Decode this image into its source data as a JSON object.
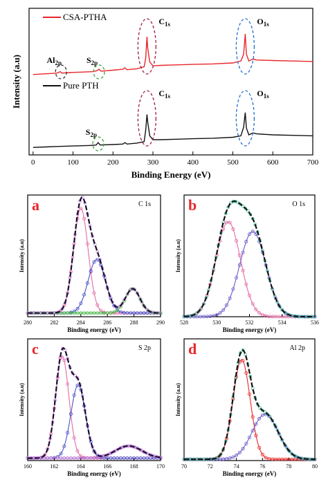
{
  "chart_data": [
    {
      "id": "survey",
      "type": "line",
      "xlabel": "Binding Energy (eV)",
      "ylabel": "Intensity (a.u)",
      "xlim": [
        -10,
        700
      ],
      "xticks": [
        0,
        100,
        200,
        300,
        400,
        500,
        600,
        700
      ],
      "yticks": false,
      "legend_position": "top-left",
      "series": [
        {
          "name": "CSA-PTHA",
          "color": "#e8262a",
          "offset": 0.55,
          "points": [
            [
              0,
              0.03
            ],
            [
              20,
              0.035
            ],
            [
              40,
              0.04
            ],
            [
              60,
              0.045
            ],
            [
              68,
              0.06
            ],
            [
              72,
              0.045
            ],
            [
              90,
              0.05
            ],
            [
              100,
              0.052
            ],
            [
              120,
              0.055
            ],
            [
              150,
              0.06
            ],
            [
              160,
              0.07
            ],
            [
              165,
              0.085
            ],
            [
              170,
              0.065
            ],
            [
              200,
              0.075
            ],
            [
              225,
              0.085
            ],
            [
              230,
              0.1
            ],
            [
              235,
              0.08
            ],
            [
              260,
              0.09
            ],
            [
              278,
              0.11
            ],
            [
              282,
              0.2
            ],
            [
              285,
              0.42
            ],
            [
              287,
              0.3
            ],
            [
              292,
              0.16
            ],
            [
              300,
              0.12
            ],
            [
              320,
              0.125
            ],
            [
              360,
              0.13
            ],
            [
              400,
              0.135
            ],
            [
              450,
              0.14
            ],
            [
              500,
              0.15
            ],
            [
              520,
              0.17
            ],
            [
              527,
              0.24
            ],
            [
              531,
              0.45
            ],
            [
              534,
              0.24
            ],
            [
              540,
              0.17
            ],
            [
              550,
              0.19
            ],
            [
              560,
              0.18
            ],
            [
              600,
              0.175
            ],
            [
              650,
              0.17
            ],
            [
              700,
              0.165
            ]
          ]
        },
        {
          "name": "Pure PTH",
          "color": "#111111",
          "offset": 0.0,
          "points": [
            [
              0,
              0.02
            ],
            [
              30,
              0.025
            ],
            [
              60,
              0.03
            ],
            [
              100,
              0.035
            ],
            [
              140,
              0.04
            ],
            [
              158,
              0.045
            ],
            [
              163,
              0.07
            ],
            [
              168,
              0.045
            ],
            [
              200,
              0.05
            ],
            [
              225,
              0.055
            ],
            [
              230,
              0.07
            ],
            [
              235,
              0.055
            ],
            [
              260,
              0.065
            ],
            [
              278,
              0.08
            ],
            [
              282,
              0.2
            ],
            [
              285,
              0.36
            ],
            [
              287,
              0.28
            ],
            [
              292,
              0.14
            ],
            [
              300,
              0.1
            ],
            [
              320,
              0.1
            ],
            [
              360,
              0.105
            ],
            [
              400,
              0.11
            ],
            [
              450,
              0.115
            ],
            [
              500,
              0.125
            ],
            [
              520,
              0.14
            ],
            [
              527,
              0.23
            ],
            [
              531,
              0.38
            ],
            [
              534,
              0.22
            ],
            [
              540,
              0.15
            ],
            [
              550,
              0.17
            ],
            [
              560,
              0.16
            ],
            [
              600,
              0.15
            ],
            [
              650,
              0.145
            ],
            [
              700,
              0.14
            ]
          ]
        }
      ],
      "annotations": [
        {
          "label": "Al",
          "sub": "2p",
          "x": 70,
          "series": 0
        },
        {
          "label": "S",
          "sub": "2p",
          "x": 165,
          "series": 0
        },
        {
          "label": "C",
          "sub": "1s",
          "x": 285,
          "series": 0
        },
        {
          "label": "O",
          "sub": "1s",
          "x": 531,
          "series": 0
        },
        {
          "label": "S",
          "sub": "2p",
          "x": 163,
          "series": 1
        },
        {
          "label": "C",
          "sub": "1s",
          "x": 285,
          "series": 1
        },
        {
          "label": "O",
          "sub": "1s",
          "x": 531,
          "series": 1
        }
      ],
      "annotation_colors": {
        "Al": "#333333",
        "S": "#3aa33a",
        "C": "#a11a3a",
        "O": "#1f6fd1"
      }
    },
    {
      "id": "c1s",
      "type": "line",
      "panel_letter": "a",
      "panel_title": "C 1s",
      "xlabel": "Binding energy (eV)",
      "ylabel": "Intensity (a.u)",
      "xlim": [
        280,
        290
      ],
      "xticks": [
        280,
        282,
        284,
        286,
        288,
        290
      ],
      "peaks": [
        {
          "center": 284.0,
          "height": 0.86,
          "width": 0.55,
          "color": "#e36aa3"
        },
        {
          "center": 285.2,
          "height": 0.44,
          "width": 0.65,
          "color": "#4b53c7"
        },
        {
          "center": 287.9,
          "height": 0.2,
          "width": 0.55,
          "color": "#45b845"
        }
      ],
      "background": 0.03,
      "envelope_color": "#1a0b33",
      "data_color": "#c48ad8"
    },
    {
      "id": "o1s",
      "type": "line",
      "panel_letter": "b",
      "panel_title": "O 1s",
      "xlabel": "Binding energy (eV)",
      "ylabel": "Intensity (a.u)",
      "xlim": [
        528,
        536
      ],
      "xticks": [
        528,
        530,
        532,
        534,
        536
      ],
      "peaks": [
        {
          "center": 530.7,
          "height": 0.78,
          "width": 0.75,
          "color": "#e36aa3"
        },
        {
          "center": 532.2,
          "height": 0.7,
          "width": 0.8,
          "color": "#6a5cc9"
        }
      ],
      "background": 0.0,
      "envelope_color": "#111111",
      "data_color": "#3bbf9e"
    },
    {
      "id": "s2p",
      "type": "line",
      "panel_letter": "c",
      "panel_title": "S 2p",
      "xlabel": "Binding energy (eV)",
      "ylabel": "Intensity (a.u)",
      "xlim": [
        160,
        170
      ],
      "xticks": [
        160,
        162,
        164,
        166,
        168,
        170
      ],
      "peaks": [
        {
          "center": 162.6,
          "height": 0.84,
          "width": 0.5,
          "color": "#e36aa3"
        },
        {
          "center": 163.8,
          "height": 0.6,
          "width": 0.55,
          "color": "#4b53c7"
        },
        {
          "center": 167.6,
          "height": 0.1,
          "width": 1.0,
          "color": "#b56ad0"
        }
      ],
      "background": 0.02,
      "envelope_color": "#1a0b33",
      "data_color": "#c48ad8"
    },
    {
      "id": "al2p",
      "type": "line",
      "panel_letter": "d",
      "panel_title": "Al 2p",
      "xlabel": "Binding energy (eV)",
      "ylabel": "Intensity (a.u)",
      "xlim": [
        70,
        80
      ],
      "xticks": [
        70,
        72,
        74,
        76,
        78,
        80
      ],
      "peaks": [
        {
          "center": 74.4,
          "height": 0.82,
          "width": 0.65,
          "color": "#e8262a"
        },
        {
          "center": 76.2,
          "height": 0.37,
          "width": 1.0,
          "color": "#6a5cc9"
        }
      ],
      "background": 0.01,
      "envelope_color": "#111111",
      "data_color": "#3bbf9e"
    }
  ],
  "colors": {
    "panel_letter": "#e8262a"
  }
}
